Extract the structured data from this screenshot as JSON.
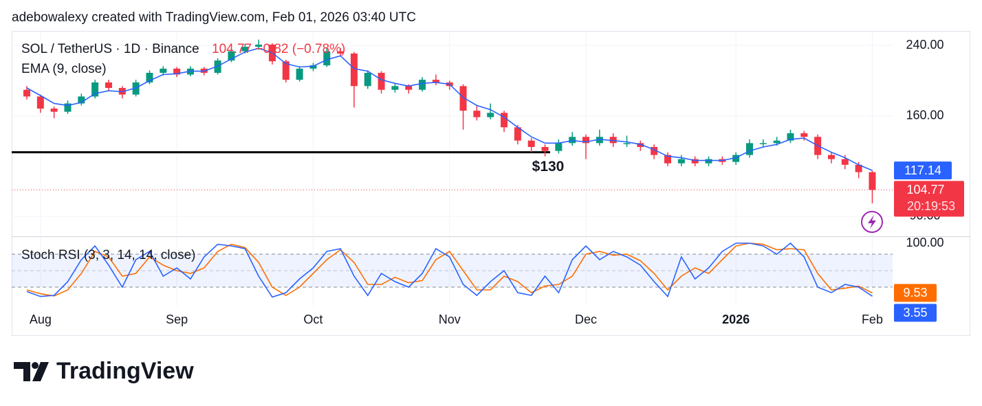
{
  "attribution": "adebowalexy created with TradingView.com, Feb 01, 2026 03:40 UTC",
  "brand": "TradingView",
  "chart_data": {
    "type": "candlestick",
    "title": "SOL / TetherUS · 1D · Binance",
    "quote": "104.77 −0.82 (−0.78%)",
    "quote_color": "#f23645",
    "categories": [
      null,
      "Aug",
      null,
      null,
      null,
      null,
      null,
      null,
      null,
      null,
      null,
      "Sep",
      null,
      null,
      null,
      null,
      null,
      null,
      null,
      null,
      null,
      "Oct",
      null,
      null,
      null,
      null,
      null,
      null,
      null,
      null,
      null,
      "Nov",
      null,
      null,
      null,
      null,
      null,
      null,
      null,
      null,
      null,
      "Dec",
      null,
      null,
      null,
      null,
      null,
      null,
      null,
      null,
      null,
      null,
      "2026",
      null,
      null,
      null,
      null,
      null,
      null,
      null,
      null,
      null,
      "Feb"
    ],
    "open": [
      186,
      179,
      167,
      164,
      172,
      179,
      194,
      188,
      181,
      194,
      205,
      210,
      203,
      210,
      205,
      220,
      232,
      238,
      241,
      219,
      197,
      210,
      214,
      232,
      229,
      190,
      205,
      186,
      190,
      186,
      197,
      194,
      190,
      165,
      159,
      163,
      150,
      139,
      134,
      131,
      137,
      142,
      137,
      142,
      137,
      137,
      134,
      128,
      122,
      125,
      122,
      125,
      123,
      128,
      137,
      137,
      139,
      145,
      142,
      128,
      125,
      121,
      116
    ],
    "high": [
      190,
      181,
      169,
      175,
      182,
      197,
      197,
      190,
      197,
      208,
      213,
      212,
      213,
      212,
      223,
      236,
      242,
      248,
      243,
      221,
      213,
      217,
      236,
      236,
      231,
      208,
      207,
      193,
      192,
      200,
      203,
      196,
      192,
      170,
      172,
      165,
      152,
      141,
      136,
      140,
      146,
      144,
      148,
      145,
      143,
      139,
      136,
      130,
      128,
      127,
      127,
      127,
      130,
      140,
      140,
      142,
      148,
      147,
      144,
      130,
      128,
      123,
      117
    ],
    "low": [
      176,
      163,
      158,
      162,
      170,
      177,
      185,
      177,
      179,
      192,
      202,
      200,
      201,
      202,
      203,
      218,
      229,
      234,
      215,
      194,
      195,
      207,
      212,
      225,
      168,
      187,
      182,
      183,
      182,
      184,
      191,
      186,
      148,
      156,
      157,
      146,
      136,
      130,
      127,
      129,
      135,
      125,
      135,
      134,
      134,
      131,
      125,
      120,
      120,
      120,
      120,
      121,
      121,
      126,
      134,
      135,
      137,
      139,
      125,
      122,
      118,
      112,
      97
    ],
    "close": [
      179,
      167,
      164,
      172,
      179,
      194,
      188,
      181,
      194,
      205,
      210,
      203,
      210,
      205,
      220,
      232,
      238,
      241,
      219,
      197,
      210,
      214,
      232,
      229,
      190,
      205,
      186,
      190,
      186,
      197,
      194,
      190,
      165,
      159,
      163,
      150,
      139,
      134,
      131,
      137,
      142,
      137,
      142,
      137,
      137,
      134,
      128,
      122,
      125,
      122,
      125,
      123,
      128,
      137,
      137,
      139,
      145,
      142,
      128,
      125,
      121,
      116,
      104.77
    ],
    "up_color": "#089981",
    "down_color": "#f23645",
    "log_scale": true,
    "ylim": [
      80.6,
      260.7
    ],
    "yticks": [
      {
        "value": 90,
        "label": "90.00"
      },
      {
        "value": 160,
        "label": "160.00"
      },
      {
        "value": 240,
        "label": "240.00"
      }
    ],
    "grid": true,
    "ema": {
      "name": "EMA (9, close)",
      "color": "#2962ff",
      "values": [
        188,
        180,
        172,
        170,
        173,
        182,
        185,
        184,
        188,
        196,
        203,
        204,
        207,
        207,
        213,
        222,
        231,
        236,
        230,
        216,
        212,
        213,
        221,
        226,
        210,
        207,
        197,
        193,
        190,
        193,
        194,
        192,
        178,
        170,
        166,
        159,
        150,
        142,
        137,
        137,
        139,
        138,
        140,
        139,
        138,
        136,
        132,
        127,
        126,
        124,
        124,
        124,
        126,
        131,
        134,
        136,
        140,
        141,
        135,
        130,
        126,
        121,
        117.14
      ]
    },
    "annotation": {
      "text": "$130",
      "value": 130,
      "color": "#000000"
    },
    "countdown": "20:19:53",
    "stoch_rsi": {
      "name": "Stoch RSI (3, 3, 14, 14, close)",
      "ylim": [
        -13.75,
        111.25
      ],
      "yticks": [
        {
          "value": 100,
          "label": "100.00"
        }
      ],
      "levels": [
        20,
        50,
        80
      ],
      "series": [
        {
          "color": "#2962ff",
          "values": [
            12,
            3,
            5,
            30,
            70,
            95,
            60,
            20,
            70,
            85,
            40,
            55,
            35,
            75,
            98,
            95,
            90,
            40,
            2,
            10,
            35,
            55,
            85,
            90,
            40,
            5,
            45,
            30,
            20,
            45,
            90,
            75,
            25,
            5,
            30,
            50,
            10,
            5,
            40,
            10,
            70,
            95,
            70,
            85,
            75,
            60,
            30,
            3,
            75,
            35,
            55,
            85,
            100,
            100,
            95,
            80,
            100,
            75,
            20,
            10,
            25,
            20,
            3.55
          ]
        },
        {
          "color": "#ff6d00",
          "values": [
            15,
            8,
            4,
            15,
            45,
            85,
            75,
            40,
            45,
            75,
            60,
            50,
            45,
            55,
            85,
            98,
            92,
            65,
            20,
            5,
            20,
            45,
            70,
            88,
            65,
            25,
            25,
            38,
            28,
            32,
            70,
            85,
            50,
            15,
            15,
            40,
            30,
            10,
            22,
            25,
            40,
            80,
            85,
            78,
            80,
            68,
            45,
            15,
            40,
            55,
            45,
            70,
            95,
            100,
            98,
            88,
            90,
            88,
            45,
            15,
            18,
            22,
            9.53
          ]
        }
      ]
    }
  }
}
